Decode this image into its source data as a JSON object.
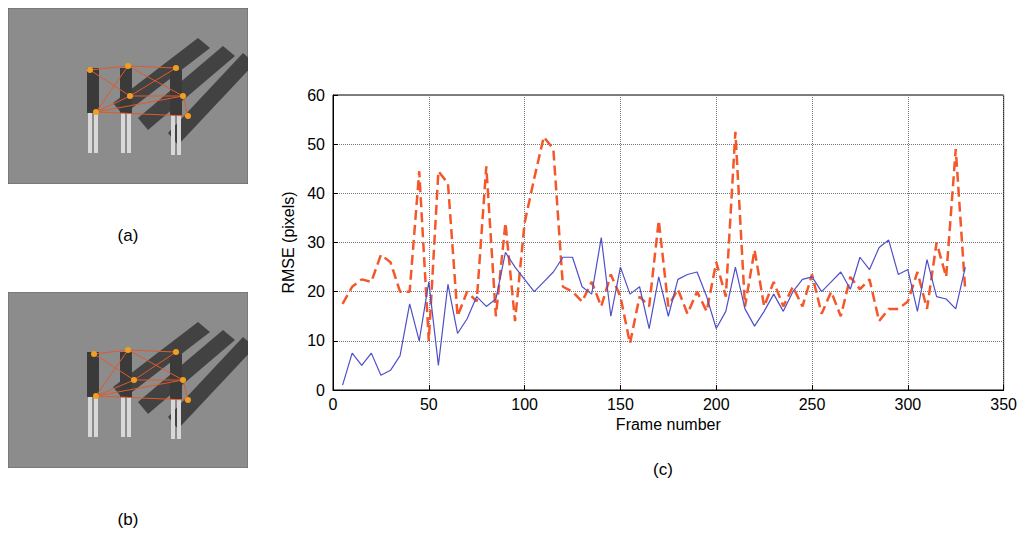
{
  "figures": [
    {
      "label": "(a)"
    },
    {
      "label": "(b)"
    }
  ],
  "chart_data": {
    "type": "line",
    "panel_label": "(c)",
    "xlabel": "Frame number",
    "ylabel": "RMSE (pixels)",
    "xlim": [
      0,
      350
    ],
    "ylim": [
      0,
      60
    ],
    "xticks": [
      0,
      50,
      100,
      150,
      200,
      250,
      300,
      350
    ],
    "yticks": [
      0,
      10,
      20,
      30,
      40,
      50,
      60
    ],
    "grid": true,
    "x": [
      5,
      10,
      15,
      20,
      25,
      30,
      35,
      40,
      45,
      50,
      55,
      60,
      65,
      70,
      75,
      80,
      85,
      90,
      95,
      100,
      105,
      110,
      115,
      120,
      125,
      130,
      135,
      140,
      145,
      150,
      155,
      160,
      165,
      170,
      175,
      180,
      185,
      190,
      195,
      200,
      205,
      210,
      215,
      220,
      225,
      230,
      235,
      240,
      245,
      250,
      255,
      260,
      265,
      270,
      275,
      280,
      285,
      290,
      295,
      300,
      305,
      310,
      315,
      320,
      325,
      330
    ],
    "series": [
      {
        "color": "#f4572a",
        "line_style": "dashed",
        "values": [
          17.5,
          21,
          22.5,
          22,
          27.5,
          26,
          20,
          20,
          44.5,
          10,
          44.5,
          42,
          15,
          20,
          18,
          45.5,
          15,
          34,
          14,
          34,
          43,
          51.5,
          49,
          21,
          20,
          18,
          22,
          17,
          23.5,
          19,
          9.5,
          19,
          17,
          34.5,
          17,
          20.5,
          15.5,
          20,
          16,
          26,
          19,
          52.5,
          17,
          28.5,
          17,
          22,
          17,
          21,
          17,
          23.5,
          15.5,
          20,
          15,
          23,
          20.5,
          22.5,
          14,
          16.5,
          16.5,
          18,
          24,
          16.5,
          30,
          23,
          49,
          20
        ]
      },
      {
        "color": "#4f4fc8",
        "line_style": "solid",
        "values": [
          1,
          7.5,
          5,
          7.5,
          3,
          4,
          7,
          17.5,
          10,
          22,
          5,
          21.5,
          11.5,
          14.5,
          19,
          17,
          18.5,
          28,
          25,
          22.5,
          20,
          22,
          24,
          27,
          27,
          21,
          19.5,
          31,
          15,
          25,
          19.5,
          21,
          12.5,
          23,
          15,
          22.5,
          23.5,
          24,
          19,
          12.5,
          16,
          25,
          16.5,
          13,
          16,
          19.5,
          16,
          20,
          22.5,
          23,
          20,
          22,
          24,
          20.5,
          27,
          24.5,
          29,
          30.5,
          23.5,
          24.5,
          16,
          26.5,
          19,
          18.5,
          16.5,
          25
        ]
      }
    ]
  }
}
